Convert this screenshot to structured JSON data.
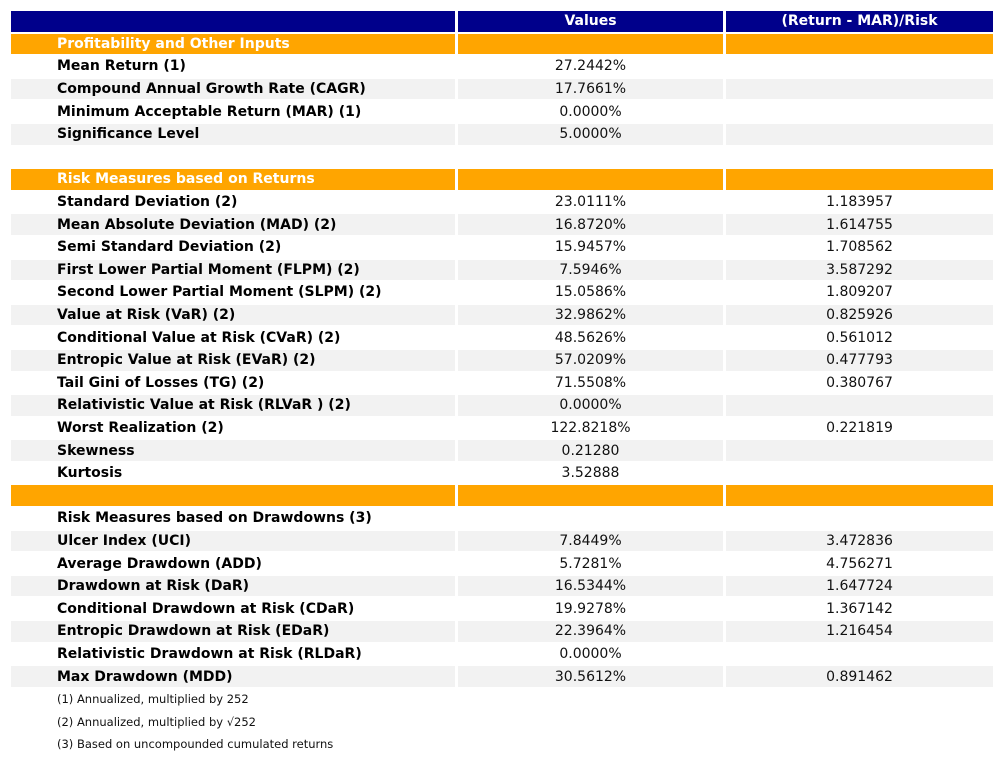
{
  "colors": {
    "header_bg": "#00008B",
    "header_text": "#FFFFFF",
    "section_bg": "#FFA500",
    "section_text": "#FFFFFF",
    "row_alt_bg": "#F2F2F2",
    "row_bg": "#FFFFFF",
    "label_text": "#000000",
    "value_text": "#111111"
  },
  "chart_data": {
    "type": "table",
    "columns": [
      "",
      "Values",
      "(Return - MAR)/Risk"
    ],
    "rows": [
      {
        "kind": "section",
        "label": "Profitability and Other Inputs",
        "value": "",
        "ratio": ""
      },
      {
        "kind": "data",
        "label": "Mean Return (1)",
        "value": "27.2442%",
        "ratio": ""
      },
      {
        "kind": "data",
        "label": "Compound Annual Growth Rate (CAGR)",
        "value": "17.7661%",
        "ratio": ""
      },
      {
        "kind": "data",
        "label": "Minimum Acceptable Return (MAR) (1)",
        "value": "0.0000%",
        "ratio": ""
      },
      {
        "kind": "data",
        "label": "Significance Level",
        "value": "5.0000%",
        "ratio": ""
      },
      {
        "kind": "blank",
        "label": "",
        "value": "",
        "ratio": ""
      },
      {
        "kind": "section",
        "label": "Risk Measures based on Returns",
        "value": "",
        "ratio": ""
      },
      {
        "kind": "data",
        "label": "Standard Deviation (2)",
        "value": "23.0111%",
        "ratio": "1.183957"
      },
      {
        "kind": "data",
        "label": "Mean Absolute Deviation (MAD) (2)",
        "value": "16.8720%",
        "ratio": "1.614755"
      },
      {
        "kind": "data",
        "label": "Semi Standard Deviation (2)",
        "value": "15.9457%",
        "ratio": "1.708562"
      },
      {
        "kind": "data",
        "label": "First Lower Partial Moment (FLPM) (2)",
        "value": "7.5946%",
        "ratio": "3.587292"
      },
      {
        "kind": "data",
        "label": "Second Lower Partial Moment (SLPM) (2)",
        "value": "15.0586%",
        "ratio": "1.809207"
      },
      {
        "kind": "data",
        "label": "Value at Risk (VaR) (2)",
        "value": "32.9862%",
        "ratio": "0.825926"
      },
      {
        "kind": "data",
        "label": "Conditional Value at Risk (CVaR) (2)",
        "value": "48.5626%",
        "ratio": "0.561012"
      },
      {
        "kind": "data",
        "label": "Entropic Value at Risk (EVaR) (2)",
        "value": "57.0209%",
        "ratio": "0.477793"
      },
      {
        "kind": "data",
        "label": "Tail Gini of Losses (TG) (2)",
        "value": "71.5508%",
        "ratio": "0.380767"
      },
      {
        "kind": "data",
        "label": "Relativistic Value at Risk (RLVaR ) (2)",
        "value": "0.0000%",
        "ratio": ""
      },
      {
        "kind": "data",
        "label": "Worst Realization (2)",
        "value": "122.8218%",
        "ratio": "0.221819"
      },
      {
        "kind": "data",
        "label": "Skewness",
        "value": "0.21280",
        "ratio": ""
      },
      {
        "kind": "data",
        "label": "Kurtosis",
        "value": "3.52888",
        "ratio": ""
      },
      {
        "kind": "section",
        "label": "",
        "value": "",
        "ratio": ""
      },
      {
        "kind": "subheader",
        "label": "Risk Measures based on Drawdowns (3)",
        "value": "",
        "ratio": ""
      },
      {
        "kind": "data",
        "label": "Ulcer Index (UCI)",
        "value": "7.8449%",
        "ratio": "3.472836"
      },
      {
        "kind": "data",
        "label": "Average Drawdown (ADD)",
        "value": "5.7281%",
        "ratio": "4.756271"
      },
      {
        "kind": "data",
        "label": "Drawdown at Risk (DaR)",
        "value": "16.5344%",
        "ratio": "1.647724"
      },
      {
        "kind": "data",
        "label": "Conditional Drawdown at Risk (CDaR)",
        "value": "19.9278%",
        "ratio": "1.367142"
      },
      {
        "kind": "data",
        "label": "Entropic Drawdown at Risk (EDaR)",
        "value": "22.3964%",
        "ratio": "1.216454"
      },
      {
        "kind": "data",
        "label": "Relativistic Drawdown at Risk (RLDaR)",
        "value": "0.0000%",
        "ratio": ""
      },
      {
        "kind": "data",
        "label": "Max Drawdown (MDD)",
        "value": "30.5612%",
        "ratio": "0.891462"
      }
    ],
    "footnotes": [
      "(1) Annualized, multiplied by 252",
      "(2) Annualized, multiplied by √252",
      "(3) Based on uncompounded cumulated returns"
    ]
  }
}
